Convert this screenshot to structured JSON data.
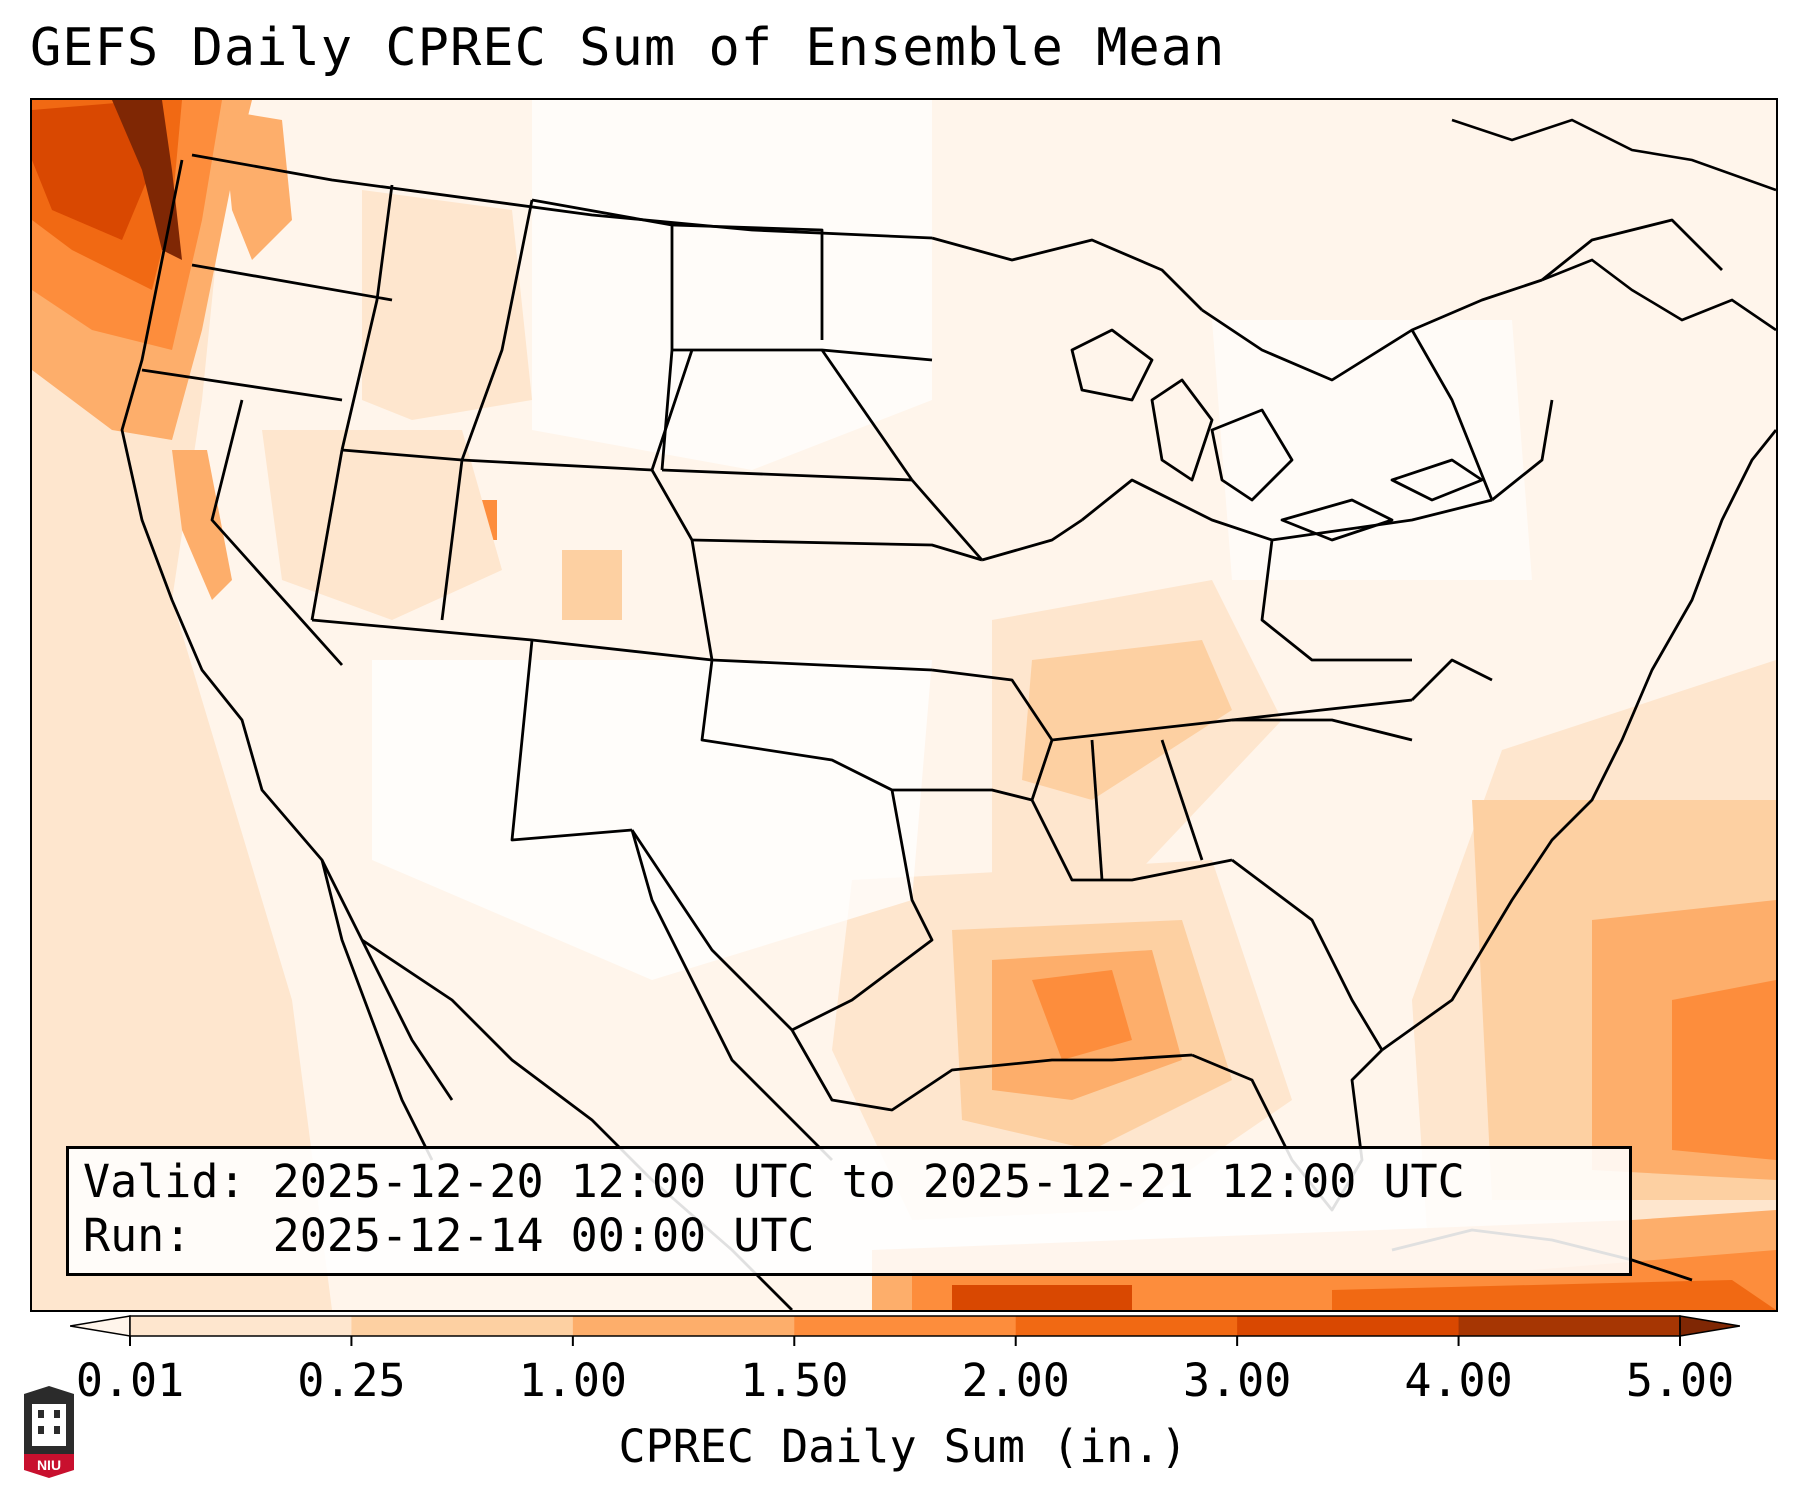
{
  "title": "GEFS Daily CPREC Sum of Ensemble Mean",
  "info": {
    "valid_label": "Valid:",
    "valid_value": "2025-12-20 12:00 UTC to 2025-12-21 12:00 UTC",
    "run_label": "Run:",
    "run_value": "2025-12-14 00:00 UTC"
  },
  "colorbar": {
    "title": "CPREC Daily Sum (in.)",
    "ticks": [
      "0.01",
      "0.25",
      "1.00",
      "1.50",
      "2.00",
      "3.00",
      "4.00",
      "5.00"
    ],
    "colors": [
      "#fff5eb",
      "#fee6ce",
      "#fdd0a2",
      "#fdae6b",
      "#fd8d3c",
      "#f16913",
      "#d94801",
      "#a63603",
      "#7f2704"
    ],
    "extend": "both"
  },
  "logo": {
    "text": "NIU"
  },
  "map": {
    "projection": "Lambert conformal, CONUS",
    "field": "CPREC daily sum",
    "max_region": "Pacific Northwest coast"
  }
}
